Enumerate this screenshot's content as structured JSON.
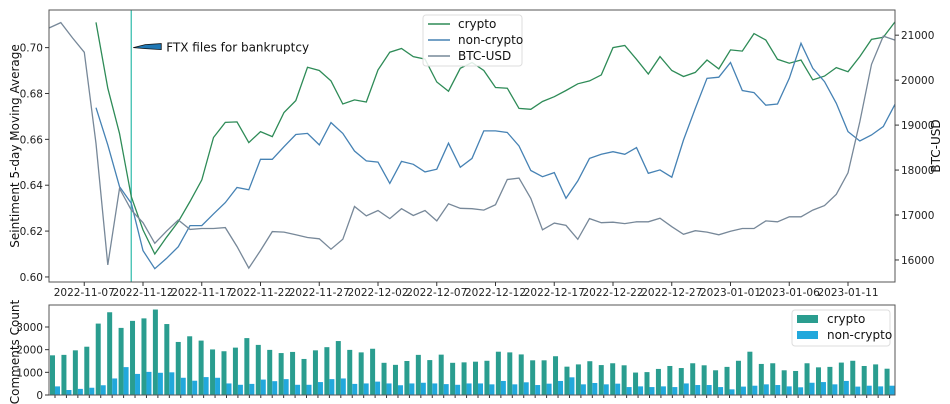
{
  "chart_data": [
    {
      "type": "line",
      "ylabel": "Seintiment 5-day Moving Average",
      "y2label": "BTC-USD",
      "ylim": [
        0.5978,
        0.7164
      ],
      "y2lim": [
        15510,
        21560
      ],
      "y_ticks": [
        "0.60",
        "0.62",
        "0.64",
        "0.66",
        "0.68",
        "0.70"
      ],
      "y2_ticks": [
        "16000",
        "17000",
        "18000",
        "19000",
        "20000",
        "21000"
      ],
      "x_ticks": [
        "2022-11-07",
        "2022-11-12",
        "2022-11-17",
        "2022-11-22",
        "2022-11-27",
        "2022-12-02",
        "2022-12-07",
        "2022-12-12",
        "2022-12-17",
        "2022-12-22",
        "2022-12-27",
        "2023-01-01",
        "2023-01-06",
        "2023-01-11"
      ],
      "grid": false,
      "legend_position": "top-center",
      "annotation": {
        "text": "FTX files for bankruptcy",
        "x": "2022-11-11",
        "y": 0.7,
        "color": "#3cbfb0"
      },
      "x": [
        "2022-11-04",
        "2022-11-05",
        "2022-11-06",
        "2022-11-07",
        "2022-11-08",
        "2022-11-09",
        "2022-11-10",
        "2022-11-11",
        "2022-11-12",
        "2022-11-13",
        "2022-11-14",
        "2022-11-15",
        "2022-11-16",
        "2022-11-17",
        "2022-11-18",
        "2022-11-19",
        "2022-11-20",
        "2022-11-21",
        "2022-11-22",
        "2022-11-23",
        "2022-11-24",
        "2022-11-25",
        "2022-11-26",
        "2022-11-27",
        "2022-11-28",
        "2022-11-29",
        "2022-11-30",
        "2022-12-01",
        "2022-12-02",
        "2022-12-03",
        "2022-12-04",
        "2022-12-05",
        "2022-12-06",
        "2022-12-07",
        "2022-12-08",
        "2022-12-09",
        "2022-12-10",
        "2022-12-11",
        "2022-12-12",
        "2022-12-13",
        "2022-12-14",
        "2022-12-15",
        "2022-12-16",
        "2022-12-17",
        "2022-12-18",
        "2022-12-19",
        "2022-12-20",
        "2022-12-21",
        "2022-12-22",
        "2022-12-23",
        "2022-12-24",
        "2022-12-25",
        "2022-12-26",
        "2022-12-27",
        "2022-12-28",
        "2022-12-29",
        "2022-12-30",
        "2022-12-31",
        "2023-01-01",
        "2023-01-02",
        "2023-01-03",
        "2023-01-04",
        "2023-01-05",
        "2023-01-06",
        "2023-01-07",
        "2023-01-08",
        "2023-01-09",
        "2023-01-10",
        "2023-01-11",
        "2023-01-12",
        "2023-01-13",
        "2023-01-14",
        "2023-01-15"
      ],
      "series": [
        {
          "name": "crypto",
          "axis": "left",
          "color": "#2e8b57",
          "values": [
            null,
            null,
            null,
            null,
            0.711,
            0.6823,
            0.6626,
            0.635,
            0.6205,
            0.61,
            0.6173,
            0.6241,
            0.6329,
            0.6423,
            0.6608,
            0.6674,
            0.6676,
            0.6586,
            0.6634,
            0.6612,
            0.6717,
            0.6769,
            0.6914,
            0.69,
            0.6855,
            0.6754,
            0.6772,
            0.6763,
            0.6903,
            0.698,
            0.6996,
            0.6961,
            0.695,
            0.685,
            0.681,
            0.691,
            0.6935,
            0.69,
            0.6826,
            0.6823,
            0.6735,
            0.6731,
            0.6765,
            0.6786,
            0.6813,
            0.6842,
            0.6855,
            0.6881,
            0.7,
            0.7009,
            0.6949,
            0.6885,
            0.6961,
            0.69,
            0.6874,
            0.6892,
            0.6946,
            0.6907,
            0.699,
            0.6985,
            0.7061,
            0.7033,
            0.6949,
            0.6932,
            0.6946,
            0.6859,
            0.6876,
            0.6913,
            0.6895,
            0.6961,
            0.7036,
            0.7045,
            0.7112
          ]
        },
        {
          "name": "non-crypto",
          "axis": "left",
          "color": "#4682b4",
          "values": [
            null,
            null,
            null,
            null,
            0.6738,
            0.6576,
            0.6394,
            0.6321,
            0.6115,
            0.6036,
            0.6081,
            0.6132,
            0.6224,
            0.6224,
            0.6275,
            0.6324,
            0.639,
            0.638,
            0.6513,
            0.6513,
            0.6568,
            0.6621,
            0.6626,
            0.6576,
            0.6673,
            0.6626,
            0.6549,
            0.6506,
            0.6501,
            0.6408,
            0.6504,
            0.6491,
            0.6458,
            0.647,
            0.6583,
            0.6478,
            0.6517,
            0.6637,
            0.6637,
            0.663,
            0.6571,
            0.6464,
            0.6437,
            0.6455,
            0.6343,
            0.6419,
            0.6517,
            0.6535,
            0.6546,
            0.6535,
            0.6564,
            0.6452,
            0.6467,
            0.6435,
            0.6597,
            0.6735,
            0.6866,
            0.6871,
            0.6935,
            0.6813,
            0.6804,
            0.6749,
            0.6754,
            0.6866,
            0.7019,
            0.691,
            0.6852,
            0.6757,
            0.6634,
            0.6593,
            0.6619,
            0.6656,
            0.6753
          ]
        },
        {
          "name": "BTC-USD",
          "axis": "right",
          "color": "#778899",
          "values": [
            21160,
            21280,
            20940,
            20620,
            18590,
            15890,
            17590,
            17110,
            16830,
            16370,
            16640,
            16890,
            16680,
            16700,
            16700,
            16720,
            16300,
            15820,
            16210,
            16630,
            16620,
            16560,
            16500,
            16470,
            16240,
            16460,
            17190,
            16980,
            17100,
            16920,
            17140,
            16990,
            17100,
            16870,
            17250,
            17150,
            17140,
            17110,
            17230,
            17790,
            17820,
            17370,
            16670,
            16820,
            16770,
            16460,
            16920,
            16830,
            16840,
            16810,
            16850,
            16850,
            16930,
            16740,
            16570,
            16650,
            16620,
            16560,
            16640,
            16700,
            16700,
            16870,
            16850,
            16960,
            16960,
            17110,
            17210,
            17460,
            17940,
            19070,
            20350,
            20980,
            20890
          ]
        }
      ]
    },
    {
      "type": "bar",
      "ylabel": "Comments Count",
      "ylim": [
        0,
        3970
      ],
      "y_ticks": [
        "0",
        "1000",
        "2000",
        "3000"
      ],
      "legend_position": "top-right",
      "series": [
        {
          "name": "crypto",
          "color": "#2a9d8f",
          "values": [
            1750,
            1770,
            1970,
            2130,
            3150,
            3650,
            2960,
            3270,
            3380,
            3770,
            3130,
            2340,
            2590,
            2400,
            2010,
            1930,
            2090,
            2510,
            2210,
            1990,
            1850,
            1900,
            1590,
            1970,
            2110,
            2380,
            1990,
            1880,
            2040,
            1420,
            1330,
            1500,
            1770,
            1540,
            1780,
            1420,
            1440,
            1470,
            1510,
            1910,
            1880,
            1790,
            1530,
            1530,
            1710,
            1250,
            1350,
            1490,
            1320,
            1400,
            1310,
            990,
            1010,
            1150,
            1280,
            1190,
            1400,
            1310,
            1090,
            1240,
            1510,
            1910,
            1370,
            1400,
            1090,
            1060,
            1400,
            1220,
            1240,
            1430,
            1510,
            1280,
            1350,
            1160
          ]
        },
        {
          "name": "non-crypto",
          "color": "#22a8dc",
          "values": [
            380,
            220,
            270,
            320,
            430,
            730,
            1230,
            930,
            1020,
            980,
            1000,
            760,
            630,
            790,
            760,
            510,
            450,
            490,
            680,
            610,
            700,
            450,
            450,
            570,
            700,
            730,
            490,
            510,
            590,
            510,
            430,
            510,
            540,
            510,
            480,
            450,
            510,
            510,
            470,
            620,
            470,
            560,
            440,
            500,
            620,
            780,
            470,
            530,
            470,
            500,
            350,
            380,
            350,
            380,
            350,
            510,
            440,
            440,
            350,
            250,
            370,
            410,
            470,
            440,
            380,
            340,
            540,
            570,
            470,
            620,
            370,
            410,
            380,
            410
          ]
        }
      ]
    }
  ]
}
